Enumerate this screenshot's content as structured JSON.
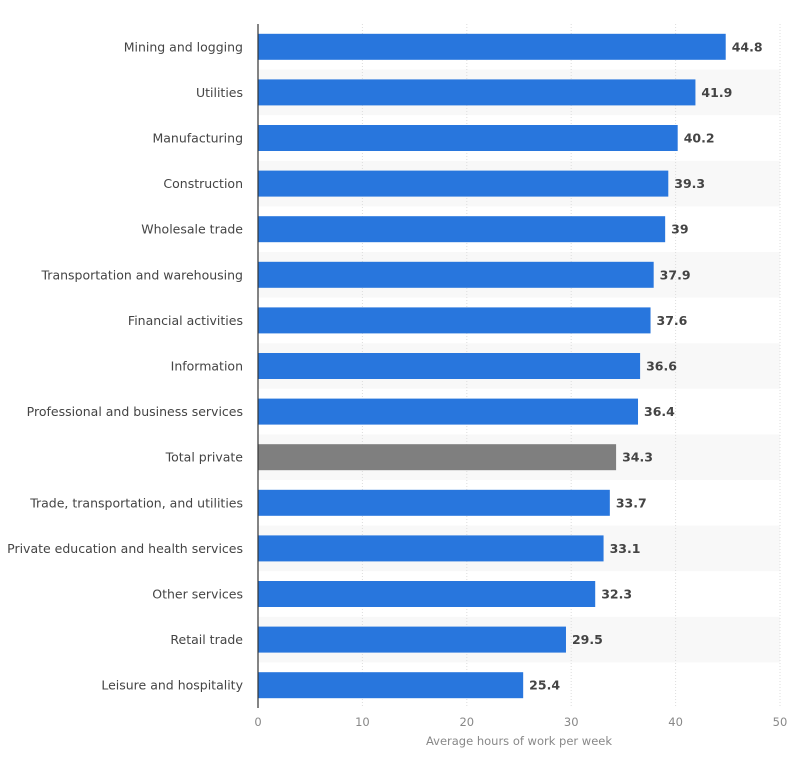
{
  "chart_data": {
    "type": "bar",
    "orientation": "horizontal",
    "title": "",
    "xlabel": "Average hours of work per week",
    "ylabel": "",
    "xlim": [
      0,
      50
    ],
    "xticks": [
      0,
      10,
      20,
      30,
      40,
      50
    ],
    "grid": true,
    "categories": [
      "Mining and logging",
      "Utilities",
      "Manufacturing",
      "Construction",
      "Wholesale trade",
      "Transportation and warehousing",
      "Financial activities",
      "Information",
      "Professional and business services",
      "Total private",
      "Trade, transportation, and utilities",
      "Private education and health services",
      "Other services",
      "Retail trade",
      "Leisure and hospitality"
    ],
    "values": [
      44.8,
      41.9,
      40.2,
      39.3,
      39,
      37.9,
      37.6,
      36.6,
      36.4,
      34.3,
      33.7,
      33.1,
      32.3,
      29.5,
      25.4
    ],
    "data_labels": [
      "44.8",
      "41.9",
      "40.2",
      "39.3",
      "39",
      "37.9",
      "37.6",
      "36.6",
      "36.4",
      "34.3",
      "33.7",
      "33.1",
      "32.3",
      "29.5",
      "25.4"
    ],
    "highlight_category": "Total private",
    "colors": {
      "bar": "#2876dd",
      "highlight": "#7f7f7f",
      "stripe": "#f8f8f8",
      "grid": "#dddddd",
      "label": "#444444",
      "axis_text": "#888888"
    }
  }
}
